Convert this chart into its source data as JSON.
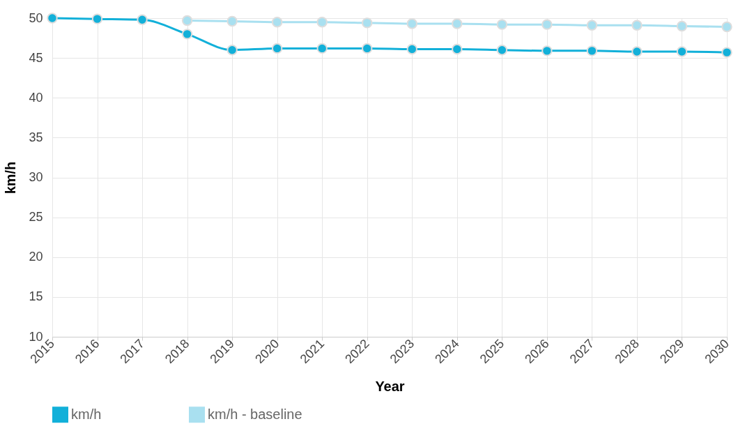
{
  "chart_data": {
    "type": "line",
    "xlabel": "Year",
    "ylabel": "km/h",
    "x": [
      2015,
      2016,
      2017,
      2018,
      2019,
      2020,
      2021,
      2022,
      2023,
      2024,
      2025,
      2026,
      2027,
      2028,
      2029,
      2030
    ],
    "series": [
      {
        "name": "km/h",
        "color": "#12b0d9",
        "values": [
          50,
          49.9,
          49.8,
          48,
          46,
          46.2,
          46.2,
          46.2,
          46.1,
          46.1,
          46,
          45.9,
          45.9,
          45.8,
          45.8,
          45.7
        ]
      },
      {
        "name": "km/h - baseline",
        "color": "#a9e0f0",
        "values": [
          null,
          null,
          null,
          49.7,
          49.6,
          49.5,
          49.5,
          49.4,
          49.3,
          49.3,
          49.2,
          49.2,
          49.1,
          49.1,
          49,
          48.9
        ]
      }
    ],
    "xlim": [
      2015,
      2030
    ],
    "xticks": [
      2015,
      2016,
      2017,
      2018,
      2019,
      2020,
      2021,
      2022,
      2023,
      2024,
      2025,
      2026,
      2027,
      2028,
      2029,
      2030
    ],
    "ylim": [
      10,
      50
    ],
    "yticks": [
      10,
      15,
      20,
      25,
      30,
      35,
      40,
      45,
      50
    ],
    "grid": true,
    "legend": "bottom",
    "marker": "circle",
    "line_style": "solid"
  }
}
